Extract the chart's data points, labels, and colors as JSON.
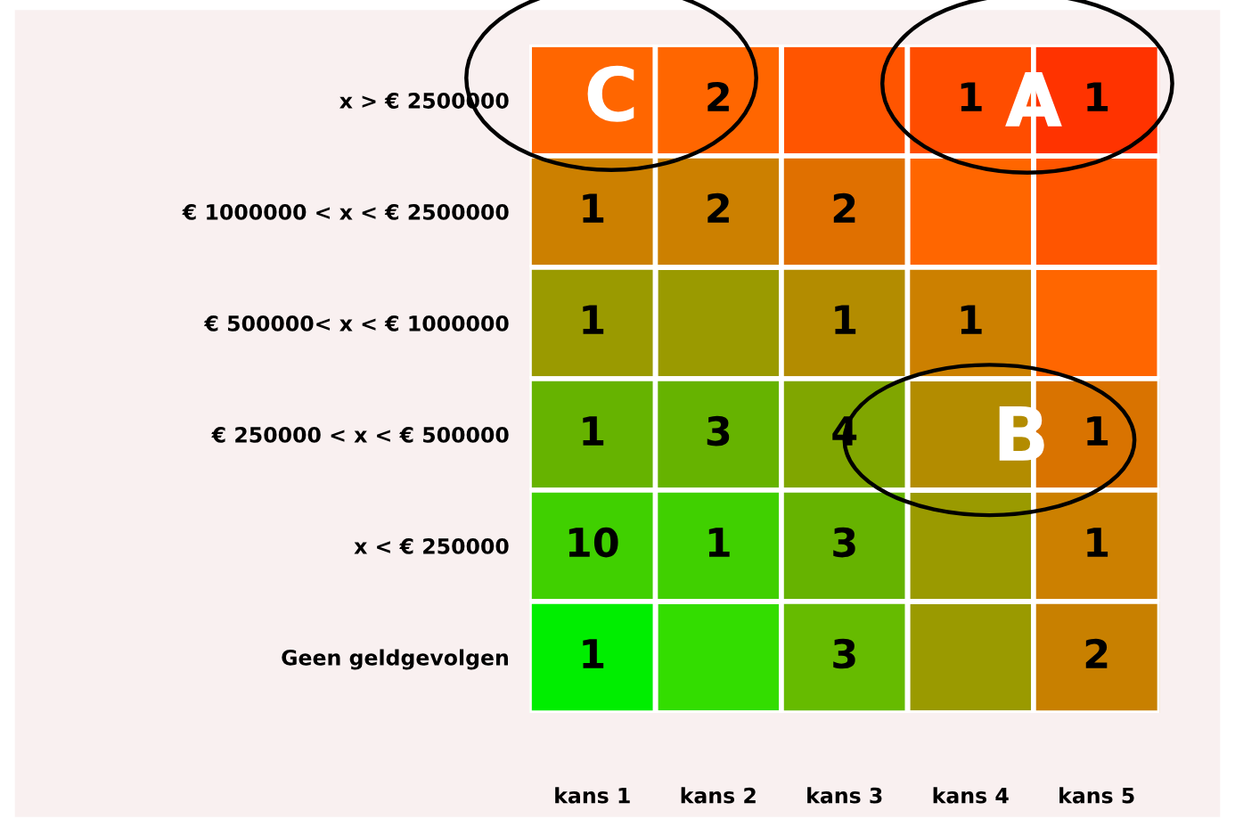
{
  "chart_data": {
    "type": "heatmap",
    "categories": [
      "kans 1",
      "kans 2",
      "kans 3",
      "kans 4",
      "kans 5"
    ],
    "y_categories": [
      "x > € 2500000",
      "€ 1000000 < x < € 2500000",
      "€ 500000< x < € 1000000",
      "€ 250000 < x < € 500000",
      "x < € 250000",
      "Geen geldgevolgen"
    ],
    "cells": [
      [
        null,
        2,
        null,
        1,
        1
      ],
      [
        1,
        2,
        2,
        null,
        null
      ],
      [
        1,
        null,
        1,
        1,
        null
      ],
      [
        1,
        3,
        4,
        null,
        1
      ],
      [
        10,
        1,
        3,
        null,
        1
      ],
      [
        1,
        null,
        3,
        null,
        2
      ]
    ],
    "colors": [
      [
        "#ff6600",
        "#ff6600",
        "#ff5500",
        "#ff4d00",
        "#ff3300"
      ],
      [
        "#cc8000",
        "#cc8000",
        "#e07000",
        "#ff6600",
        "#ff5500"
      ],
      [
        "#9a9a00",
        "#9a9a00",
        "#b38c00",
        "#cc8000",
        "#ff6600"
      ],
      [
        "#66b300",
        "#66b300",
        "#80a600",
        "#b38c00",
        "#d97300"
      ],
      [
        "#40d000",
        "#40d000",
        "#66b300",
        "#9a9a00",
        "#cc8000"
      ],
      [
        "#00ee00",
        "#33dd00",
        "#66bb00",
        "#9a9a00",
        "#c88000"
      ]
    ],
    "data_labels": true,
    "annotations": [
      "A",
      "B",
      "C"
    ]
  }
}
